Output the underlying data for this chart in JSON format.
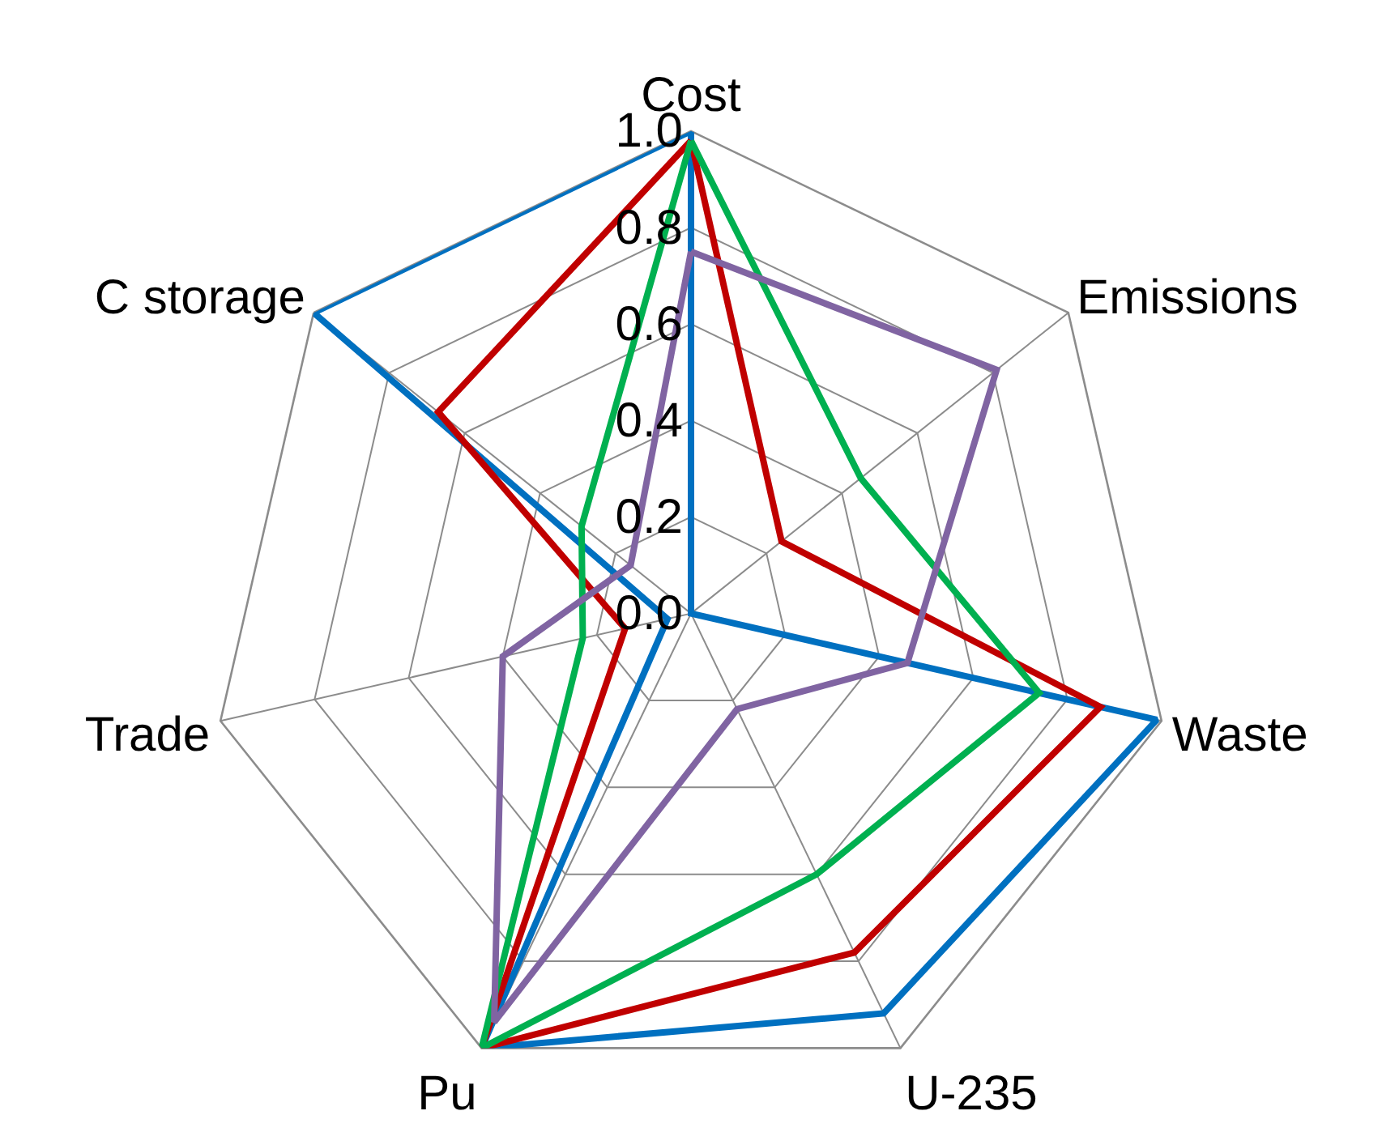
{
  "chart_data": {
    "type": "radar",
    "categories": [
      "Cost",
      "Emissions",
      "Waste",
      "U-235",
      "Pu",
      "Trade",
      "C storage"
    ],
    "ylim": [
      0,
      1
    ],
    "yticks": [
      {
        "value": 0,
        "label": "0.0"
      },
      {
        "value": 0.2,
        "label": "0.2"
      },
      {
        "value": 0.4,
        "label": "0.4"
      },
      {
        "value": 0.6,
        "label": "0.6"
      },
      {
        "value": 0.8,
        "label": "0.8"
      },
      {
        "value": 1,
        "label": "1.0"
      }
    ],
    "grid": true,
    "marker": "none",
    "series": [
      {
        "color": "#0070c0",
        "values": [
          1.0,
          0.0,
          0.99,
          0.92,
          1.0,
          0.05,
          1.0
        ]
      },
      {
        "color": "#c00000",
        "values": [
          0.98,
          0.24,
          0.87,
          0.78,
          1.0,
          0.14,
          0.67
        ]
      },
      {
        "color": "#00b050",
        "values": [
          0.98,
          0.45,
          0.74,
          0.6,
          1.0,
          0.23,
          0.29
        ]
      },
      {
        "color": "#8064a2",
        "values": [
          0.75,
          0.81,
          0.46,
          0.22,
          0.94,
          0.4,
          0.16
        ]
      }
    ]
  }
}
